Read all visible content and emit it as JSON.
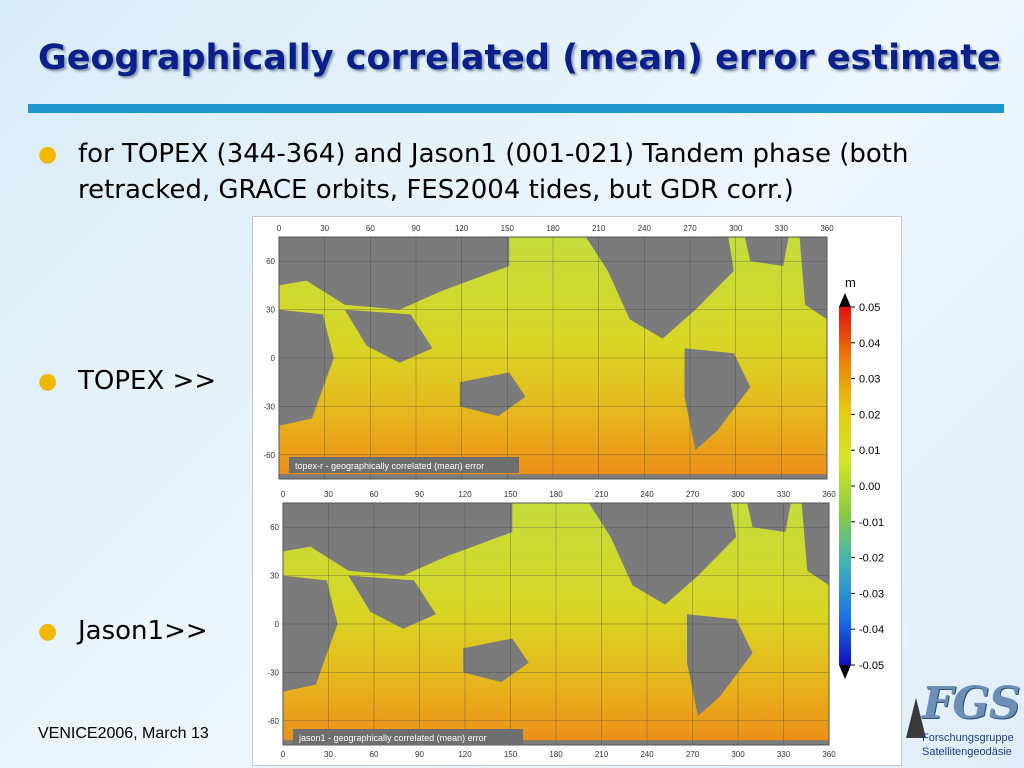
{
  "slide": {
    "title": "Geographically correlated (mean) error estimate",
    "bullets": [
      "for TOPEX (344-364) and Jason1 (001-021) Tandem phase (both retracked, GRACE orbits, FES2004 tides, but GDR corr.)",
      "TOPEX >>",
      "Jason1>>"
    ],
    "footer": "VENICE2006, March 13",
    "accent_color": "#1e96cc",
    "title_color": "#0b1f8a",
    "bullet_color": "#f0b800"
  },
  "logo": {
    "acronym": "FGS",
    "line1": "Forschungsgruppe",
    "line2": "Satellitengeodäsie"
  },
  "figure": {
    "maps": [
      {
        "caption": "topex-r - geographically correlated (mean) error",
        "x_ticks": [
          "0",
          "30",
          "60",
          "90",
          "120",
          "150",
          "180",
          "210",
          "240",
          "270",
          "300",
          "330",
          "360"
        ],
        "y_ticks": [
          "60",
          "30",
          "0",
          "-30",
          "-60"
        ]
      },
      {
        "caption": "jason1 - geographically correlated (mean) error",
        "x_ticks": [
          "0",
          "30",
          "60",
          "90",
          "120",
          "150",
          "180",
          "210",
          "240",
          "270",
          "300",
          "330",
          "360"
        ],
        "y_ticks": [
          "60",
          "30",
          "0",
          "-30",
          "-60"
        ]
      }
    ],
    "colorbar": {
      "unit": "m",
      "ticks": [
        "0.05",
        "0.04",
        "0.03",
        "0.02",
        "0.01",
        "0.00",
        "-0.01",
        "-0.02",
        "-0.03",
        "-0.04",
        "-0.05"
      ],
      "colors": [
        "#1010c8",
        "#1e78e6",
        "#40b4b4",
        "#8ccc40",
        "#d2e628",
        "#e6c814",
        "#eb7d0a",
        "#e60f0f"
      ]
    }
  }
}
